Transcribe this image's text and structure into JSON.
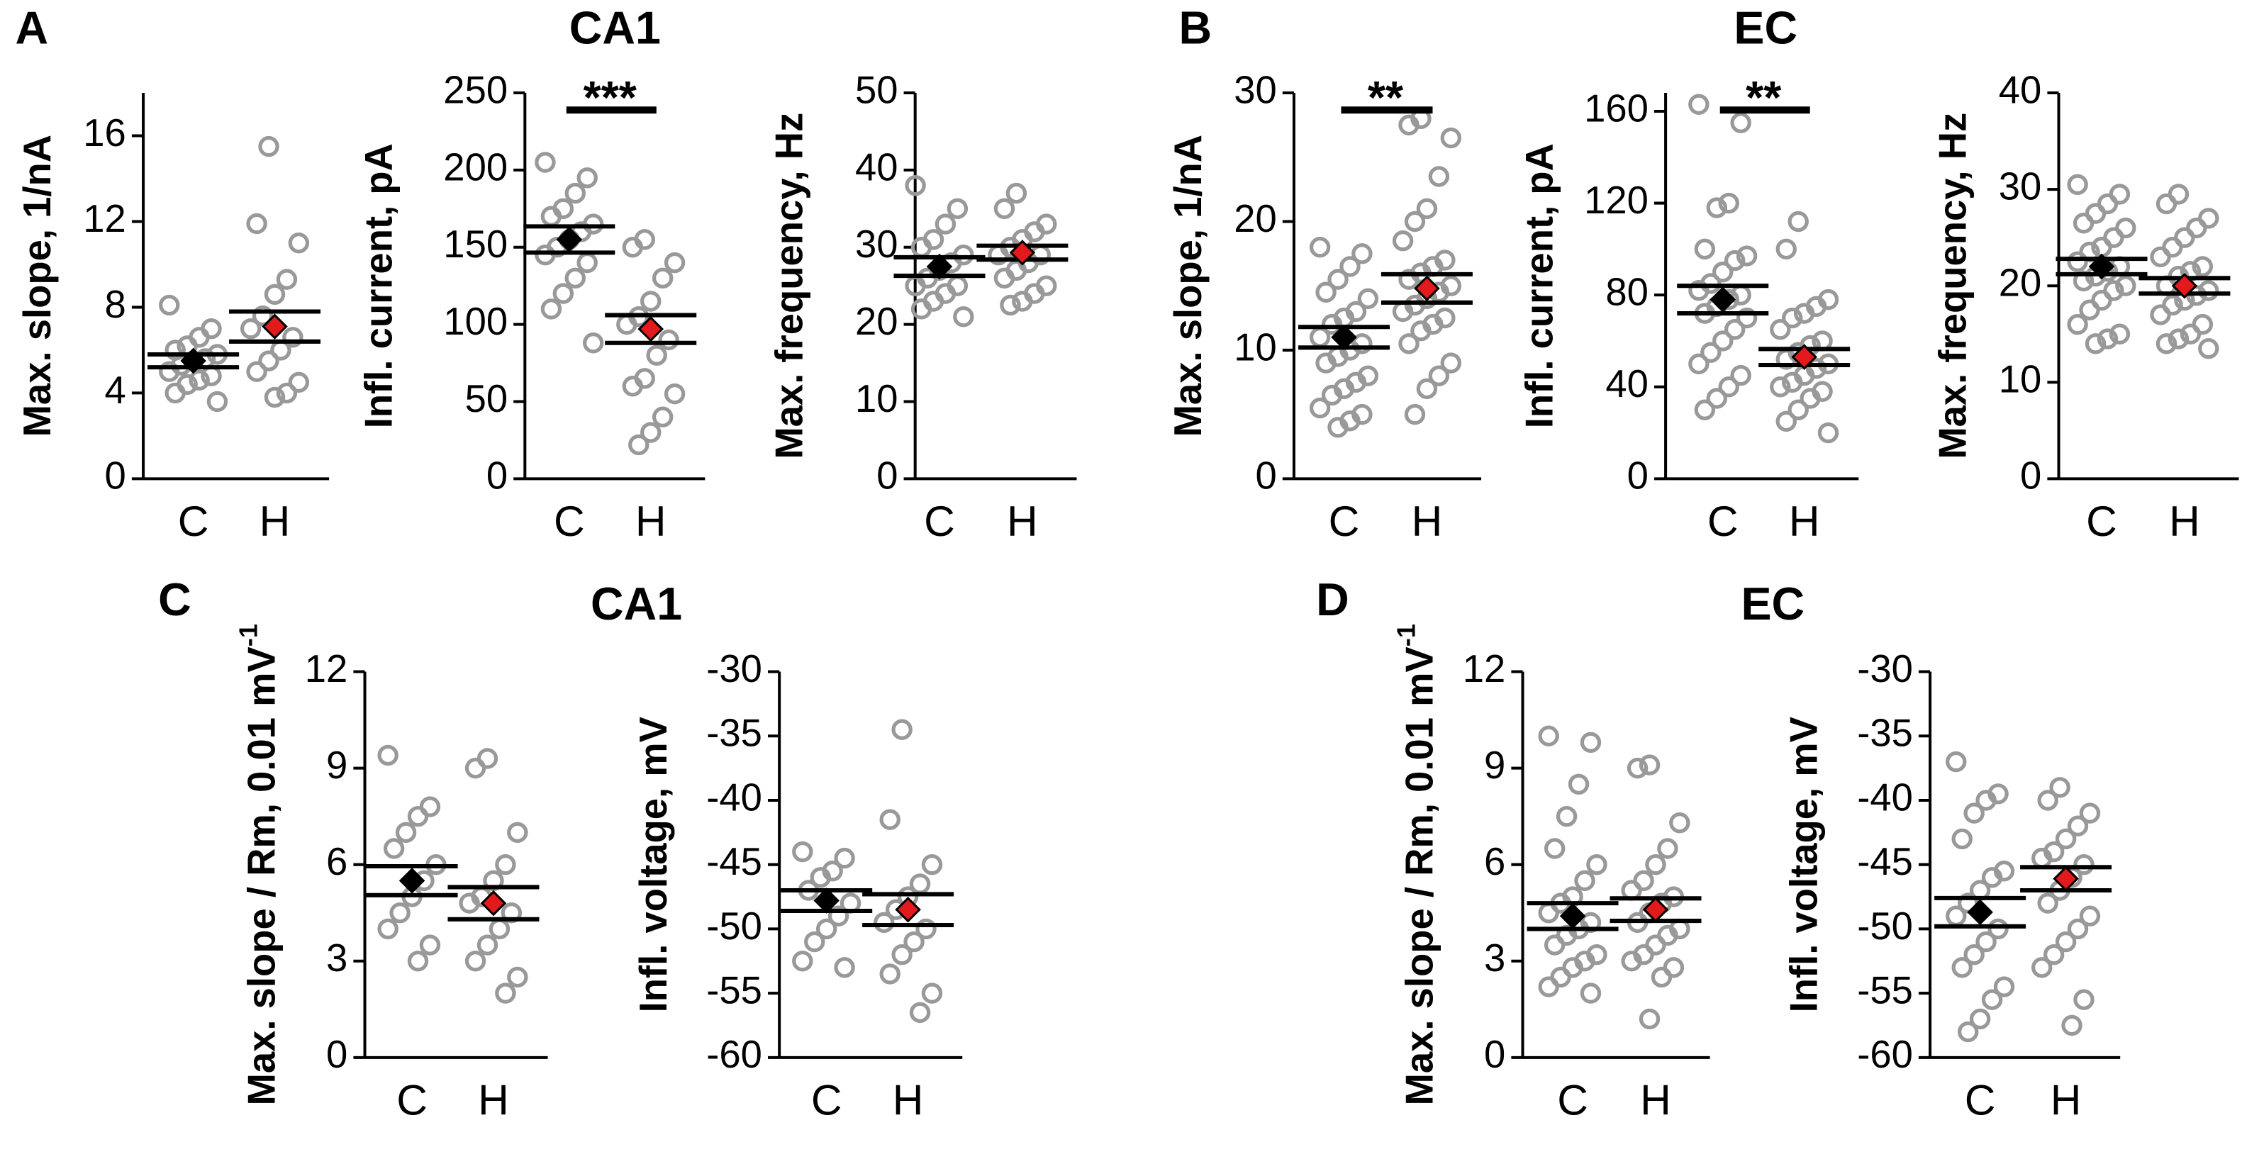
{
  "panel_labels": [
    "A",
    "B",
    "C",
    "D"
  ],
  "group_titles": [
    "CA1",
    "EC",
    "CA1",
    "EC"
  ],
  "chart_data": [
    {
      "type": "strip",
      "ylabel": "Max. slope, 1/nA",
      "categories": [
        "C",
        "H"
      ],
      "ylim": [
        0,
        18
      ],
      "yticks": [
        0,
        4,
        8,
        12,
        16
      ],
      "values": [
        [
          8.1,
          7.0,
          6.6,
          6.2,
          6.0,
          5.8,
          5.6,
          5.5,
          5.3,
          5.0,
          4.8,
          4.6,
          4.4,
          4.0,
          3.6
        ],
        [
          15.5,
          11.9,
          11.0,
          9.3,
          8.6,
          7.6,
          7.0,
          6.6,
          6.0,
          5.5,
          5.0,
          4.5,
          4.0,
          3.8
        ]
      ],
      "mean": [
        5.5,
        7.1
      ],
      "sem": [
        0.3,
        0.7
      ],
      "point_color": "#999999",
      "mean_colors": [
        "#000000",
        "#e31a1c"
      ]
    },
    {
      "type": "strip",
      "ylabel": "Infl. current, pA",
      "categories": [
        "C",
        "H"
      ],
      "ylim": [
        0,
        250
      ],
      "yticks": [
        0,
        50,
        100,
        150,
        200,
        250
      ],
      "values": [
        [
          205,
          195,
          185,
          175,
          170,
          165,
          160,
          155,
          150,
          145,
          140,
          130,
          120,
          110,
          88
        ],
        [
          155,
          150,
          140,
          130,
          115,
          105,
          100,
          90,
          80,
          65,
          60,
          55,
          40,
          30,
          22
        ]
      ],
      "mean": [
        155,
        97
      ],
      "sem": [
        8.5,
        9
      ],
      "significance": "***",
      "point_color": "#999999",
      "mean_colors": [
        "#000000",
        "#e31a1c"
      ]
    },
    {
      "type": "strip",
      "ylabel": "Max. frequency, Hz",
      "categories": [
        "C",
        "H"
      ],
      "ylim": [
        0,
        50
      ],
      "yticks": [
        0,
        10,
        20,
        30,
        40,
        50
      ],
      "values": [
        [
          38,
          35,
          33,
          31,
          30,
          29,
          28,
          27,
          26,
          25,
          25,
          24,
          23,
          22,
          21
        ],
        [
          37,
          35,
          33,
          32,
          31,
          30,
          29,
          29,
          28,
          27,
          26,
          25,
          24,
          23,
          22.5
        ]
      ],
      "mean": [
        27.5,
        29.3
      ],
      "sem": [
        1.2,
        0.9
      ],
      "point_color": "#999999",
      "mean_colors": [
        "#000000",
        "#e31a1c"
      ]
    },
    {
      "type": "strip",
      "ylabel": "Max. slope, 1/nA",
      "categories": [
        "C",
        "H"
      ],
      "ylim": [
        0,
        30
      ],
      "yticks": [
        0,
        10,
        20,
        30
      ],
      "values": [
        [
          18,
          17.5,
          16.5,
          15.5,
          14.5,
          14,
          13,
          12.5,
          12,
          11,
          10.5,
          10,
          9.5,
          9,
          8,
          7.5,
          7,
          6.5,
          5.5,
          5,
          4.5,
          4
        ],
        [
          28,
          27.5,
          26.5,
          23.5,
          21,
          20,
          18.5,
          17,
          16.5,
          16,
          15.5,
          15,
          14.5,
          14,
          13.5,
          13,
          12.5,
          12,
          11.5,
          10.5,
          9,
          8,
          7,
          5
        ]
      ],
      "mean": [
        11,
        14.8
      ],
      "sem": [
        0.8,
        1.1
      ],
      "significance": "**",
      "point_color": "#999999",
      "mean_colors": [
        "#000000",
        "#e31a1c"
      ]
    },
    {
      "type": "strip",
      "ylabel": "Infl. current, pA",
      "categories": [
        "C",
        "H"
      ],
      "ylim": [
        0,
        168
      ],
      "yticks": [
        0,
        40,
        80,
        120,
        160
      ],
      "values": [
        [
          163,
          155,
          120,
          118,
          100,
          97,
          95,
          90,
          85,
          82,
          80,
          78,
          75,
          72,
          70,
          65,
          60,
          55,
          50,
          45,
          40,
          35,
          30
        ],
        [
          112,
          100,
          78,
          75,
          72,
          70,
          65,
          60,
          58,
          55,
          52,
          50,
          48,
          45,
          42,
          40,
          38,
          35,
          30,
          25,
          20
        ]
      ],
      "mean": [
        78,
        53
      ],
      "sem": [
        6,
        3.5
      ],
      "significance": "**",
      "point_color": "#999999",
      "mean_colors": [
        "#000000",
        "#e31a1c"
      ]
    },
    {
      "type": "strip",
      "ylabel": "Max. frequency, Hz",
      "categories": [
        "C",
        "H"
      ],
      "ylim": [
        0,
        40
      ],
      "yticks": [
        0,
        10,
        20,
        30,
        40
      ],
      "values": [
        [
          30.5,
          29.5,
          28.5,
          27.5,
          26.5,
          26,
          25,
          24,
          23.5,
          22.5,
          22,
          21.5,
          21,
          20.5,
          20,
          19.5,
          18.5,
          17.5,
          16,
          15,
          14.5,
          14
        ],
        [
          29.5,
          28.5,
          27,
          26,
          25,
          24,
          23,
          22,
          21.5,
          21,
          20,
          19.5,
          19,
          18.5,
          18,
          17,
          16,
          15,
          14.5,
          14,
          13.5
        ]
      ],
      "mean": [
        22,
        20
      ],
      "sem": [
        0.8,
        0.8
      ],
      "point_color": "#999999",
      "mean_colors": [
        "#000000",
        "#e31a1c"
      ]
    },
    {
      "type": "strip",
      "ylabel": "Max. slope / Rm, 0.01 mV",
      "ylabel_superscript": "-1",
      "categories": [
        "C",
        "H"
      ],
      "ylim": [
        0,
        12
      ],
      "yticks": [
        0,
        3,
        6,
        9,
        12
      ],
      "values": [
        [
          9.4,
          7.8,
          7.5,
          7.0,
          6.5,
          6.0,
          5.5,
          5.0,
          4.5,
          4.0,
          3.5,
          3.0
        ],
        [
          9.3,
          9.0,
          7.0,
          6.0,
          5.5,
          5.0,
          4.8,
          4.5,
          4.0,
          3.5,
          3.0,
          2.5,
          2.0
        ]
      ],
      "mean": [
        5.5,
        4.8
      ],
      "sem": [
        0.45,
        0.5
      ],
      "point_color": "#999999",
      "mean_colors": [
        "#000000",
        "#e31a1c"
      ]
    },
    {
      "type": "strip",
      "ylabel": "Infl. voltage, mV",
      "categories": [
        "C",
        "H"
      ],
      "ylim": [
        -60,
        -30
      ],
      "yticks": [
        -60,
        -55,
        -50,
        -45,
        -40,
        -35,
        -30
      ],
      "values": [
        [
          -44,
          -44.5,
          -45.5,
          -46,
          -47,
          -48,
          -49,
          -50,
          -51,
          -52.5,
          -53
        ],
        [
          -34.5,
          -41.5,
          -45,
          -46.5,
          -47.5,
          -48.5,
          -49.5,
          -50,
          -51,
          -52,
          -53.5,
          -55,
          -56.5
        ]
      ],
      "mean": [
        -47.8,
        -48.5
      ],
      "sem": [
        0.8,
        1.2
      ],
      "point_color": "#999999",
      "mean_colors": [
        "#000000",
        "#e31a1c"
      ]
    },
    {
      "type": "strip",
      "ylabel": "Max. slope / Rm, 0.01 mV",
      "ylabel_superscript": "-1",
      "categories": [
        "C",
        "H"
      ],
      "ylim": [
        0,
        12
      ],
      "yticks": [
        0,
        3,
        6,
        9,
        12
      ],
      "values": [
        [
          10,
          9.8,
          8.5,
          7.5,
          6.5,
          6,
          5.5,
          5,
          4.8,
          4.5,
          4.2,
          4,
          3.8,
          3.5,
          3.2,
          3,
          2.8,
          2.5,
          2.2,
          2
        ],
        [
          9.1,
          9.0,
          7.3,
          6.5,
          6,
          5.5,
          5.2,
          5,
          4.8,
          4.5,
          4.2,
          4,
          3.8,
          3.5,
          3.2,
          3,
          2.8,
          2.5,
          1.2
        ]
      ],
      "mean": [
        4.4,
        4.6
      ],
      "sem": [
        0.4,
        0.35
      ],
      "point_color": "#999999",
      "mean_colors": [
        "#000000",
        "#e31a1c"
      ]
    },
    {
      "type": "strip",
      "ylabel": "Infl. voltage, mV",
      "categories": [
        "C",
        "H"
      ],
      "ylim": [
        -60,
        -30
      ],
      "yticks": [
        -60,
        -55,
        -50,
        -45,
        -40,
        -35,
        -30
      ],
      "values": [
        [
          -37,
          -39.5,
          -40,
          -41,
          -43,
          -45.5,
          -46,
          -47,
          -48,
          -49,
          -50,
          -51,
          -52,
          -53,
          -54.5,
          -55.5,
          -57,
          -58
        ],
        [
          -39,
          -40,
          -41,
          -42,
          -43,
          -44,
          -44.5,
          -45,
          -46,
          -47,
          -48,
          -49,
          -50,
          -51,
          -52,
          -53,
          -55.5,
          -57.5
        ]
      ],
      "mean": [
        -48.7,
        -46.1
      ],
      "sem": [
        1.1,
        0.9
      ],
      "point_color": "#999999",
      "mean_colors": [
        "#000000",
        "#e31a1c"
      ]
    }
  ]
}
